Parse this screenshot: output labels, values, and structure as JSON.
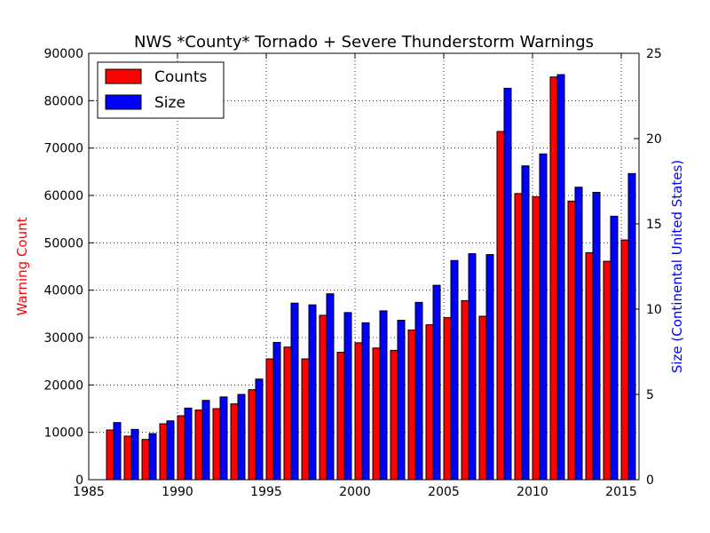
{
  "chart_data": {
    "type": "bar",
    "title": "NWS *County* Tornado + Severe Thunderstorm Warnings",
    "xlabel": "",
    "ylabel_left": "Warning Count",
    "ylabel_right": "Size (Continental United States)",
    "xlim": [
      1985,
      2016
    ],
    "ylim_left": [
      0,
      90000
    ],
    "ylim_right": [
      0,
      25
    ],
    "x_ticks": [
      "1985",
      "1990",
      "1995",
      "2000",
      "2005",
      "2010",
      "2015"
    ],
    "y_left_ticks": [
      "0",
      "10000",
      "20000",
      "30000",
      "40000",
      "50000",
      "60000",
      "70000",
      "80000",
      "90000"
    ],
    "y_right_ticks": [
      "0",
      "5",
      "10",
      "15",
      "20",
      "25"
    ],
    "grid": true,
    "legend_position": "upper-left",
    "colors": {
      "counts": "#ff0000",
      "size": "#0000ff",
      "left_axis_label": "#ff0000",
      "right_axis_label": "#0000ff"
    },
    "years": [
      1986,
      1987,
      1988,
      1989,
      1990,
      1991,
      1992,
      1993,
      1994,
      1995,
      1996,
      1997,
      1998,
      1999,
      2000,
      2001,
      2002,
      2003,
      2004,
      2005,
      2006,
      2007,
      2008,
      2009,
      2010,
      2011,
      2012,
      2013,
      2014,
      2015
    ],
    "series": [
      {
        "name": "Counts",
        "axis": "left",
        "values": [
          10500,
          9200,
          8500,
          11800,
          13500,
          14700,
          15000,
          16000,
          19000,
          25500,
          28000,
          25500,
          34700,
          26900,
          28900,
          27800,
          27300,
          31600,
          32700,
          34200,
          37800,
          34500,
          73500,
          60400,
          59700,
          85000,
          58800,
          47900,
          46100,
          50600
        ]
      },
      {
        "name": "Size",
        "axis": "right",
        "values": [
          3.35,
          2.95,
          2.7,
          3.45,
          4.2,
          4.65,
          4.85,
          5.0,
          5.9,
          8.05,
          10.35,
          10.25,
          10.9,
          9.8,
          9.2,
          9.9,
          9.35,
          10.4,
          11.4,
          12.85,
          13.25,
          13.2,
          22.95,
          18.4,
          19.1,
          23.75,
          17.15,
          16.85,
          15.45,
          17.95
        ]
      }
    ]
  }
}
